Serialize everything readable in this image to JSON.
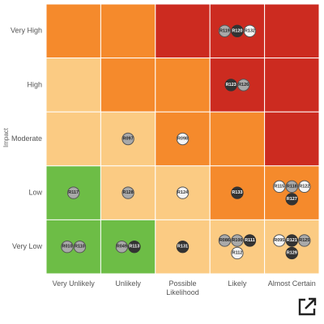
{
  "chart_data": {
    "type": "heatmap",
    "ylabel": "Impact",
    "xlabel": "",
    "rows": [
      "Very High",
      "High",
      "Moderate",
      "Low",
      "Very Low"
    ],
    "columns": [
      "Very Unlikely",
      "Unlikely",
      "Possible Likelihood",
      "Likely",
      "Almost Certain"
    ],
    "column_label_lines": [
      [
        "Very Unlikely"
      ],
      [
        "Unlikely"
      ],
      [
        "Possible",
        "Likelihood"
      ],
      [
        "Likely"
      ],
      [
        "Almost Certain"
      ]
    ],
    "cell_colors": [
      [
        "#f58a2c",
        "#f58a2c",
        "#cc2b20",
        "#cc2b20",
        "#cc2b20"
      ],
      [
        "#fbcb83",
        "#f58a2c",
        "#f58a2c",
        "#cc2b20",
        "#cc2b20"
      ],
      [
        "#fbcb83",
        "#fbcb83",
        "#f58a2c",
        "#f58a2c",
        "#cc2b20"
      ],
      [
        "#6dbd46",
        "#fbcb83",
        "#fbcb83",
        "#f58a2c",
        "#f58a2c"
      ],
      [
        "#6dbd46",
        "#6dbd46",
        "#fbcb83",
        "#fbcb83",
        "#fbcb83"
      ]
    ],
    "risk_styles": {
      "light": {
        "fill": "#f5f5f5",
        "stroke": "#555555",
        "text": "#333333"
      },
      "gray": {
        "fill": "#a9a9a9",
        "stroke": "#555555",
        "text": "#222222"
      },
      "dark": {
        "fill": "#333333",
        "stroke": "#333333",
        "text": "#ffffff"
      }
    },
    "risks": [
      {
        "id": "R119",
        "row": 0,
        "col": 3,
        "style": "gray"
      },
      {
        "id": "R120",
        "row": 0,
        "col": 3,
        "style": "dark"
      },
      {
        "id": "R132",
        "row": 0,
        "col": 3,
        "style": "light"
      },
      {
        "id": "R123",
        "row": 1,
        "col": 3,
        "style": "dark"
      },
      {
        "id": "R126",
        "row": 1,
        "col": 3,
        "style": "gray"
      },
      {
        "id": "R097",
        "row": 2,
        "col": 1,
        "style": "gray"
      },
      {
        "id": "R098",
        "row": 2,
        "col": 2,
        "style": "light"
      },
      {
        "id": "R117",
        "row": 3,
        "col": 0,
        "style": "gray"
      },
      {
        "id": "R128",
        "row": 3,
        "col": 1,
        "style": "gray"
      },
      {
        "id": "R124",
        "row": 3,
        "col": 2,
        "style": "light"
      },
      {
        "id": "R133",
        "row": 3,
        "col": 3,
        "style": "dark"
      },
      {
        "id": "R115",
        "row": 3,
        "col": 4,
        "style": "light"
      },
      {
        "id": "R118",
        "row": 3,
        "col": 4,
        "style": "gray"
      },
      {
        "id": "R122",
        "row": 3,
        "col": 4,
        "style": "light"
      },
      {
        "id": "R127",
        "row": 3,
        "col": 4,
        "style": "dark"
      },
      {
        "id": "R010",
        "row": 4,
        "col": 0,
        "style": "gray"
      },
      {
        "id": "R110",
        "row": 4,
        "col": 0,
        "style": "gray"
      },
      {
        "id": "R049",
        "row": 4,
        "col": 1,
        "style": "gray"
      },
      {
        "id": "R113",
        "row": 4,
        "col": 1,
        "style": "dark"
      },
      {
        "id": "R131",
        "row": 4,
        "col": 2,
        "style": "dark"
      },
      {
        "id": "R086",
        "row": 4,
        "col": 3,
        "style": "gray"
      },
      {
        "id": "R100",
        "row": 4,
        "col": 3,
        "style": "gray"
      },
      {
        "id": "R111",
        "row": 4,
        "col": 3,
        "style": "dark"
      },
      {
        "id": "R112",
        "row": 4,
        "col": 3,
        "style": "light"
      },
      {
        "id": "R095",
        "row": 4,
        "col": 4,
        "style": "light"
      },
      {
        "id": "R121",
        "row": 4,
        "col": 4,
        "style": "dark"
      },
      {
        "id": "R125",
        "row": 4,
        "col": 4,
        "style": "gray"
      },
      {
        "id": "R129",
        "row": 4,
        "col": 4,
        "style": "dark"
      }
    ]
  },
  "export_button": {
    "icon": "external-link-icon"
  }
}
